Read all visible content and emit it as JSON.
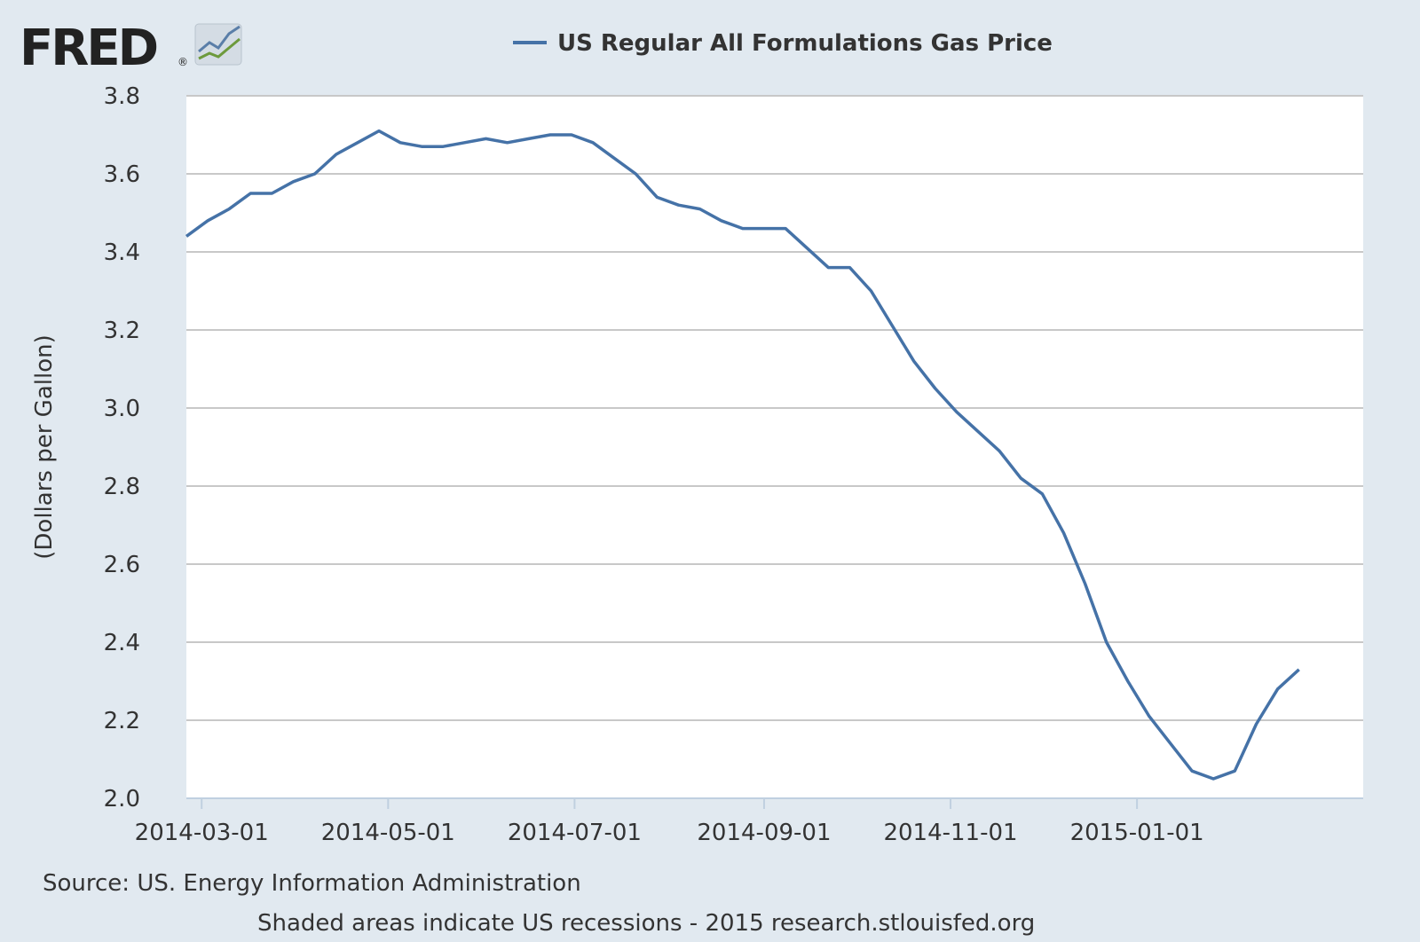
{
  "logo": {
    "text": "FRED",
    "registered": "®"
  },
  "colors": {
    "series": "#4572a7",
    "plot_bg": "#ffffff",
    "page_bg": "#e1e9f0",
    "grid": "#c8c8c8"
  },
  "chart_data": {
    "type": "line",
    "ylabel": "(Dollars per Gallon)",
    "ylim": [
      2.0,
      3.8
    ],
    "yticks": [
      "2.0",
      "2.2",
      "2.4",
      "2.6",
      "2.8",
      "3.0",
      "3.2",
      "3.4",
      "3.6",
      "3.8"
    ],
    "xlim": [
      "2014-02-24",
      "2015-03-16"
    ],
    "xticks": [
      "2014-03-01",
      "2014-05-01",
      "2014-07-01",
      "2014-09-01",
      "2014-11-01",
      "2015-01-01"
    ],
    "grid": true,
    "legend": "top-center",
    "series": [
      {
        "name": "US Regular All Formulations Gas Price",
        "x": [
          "2014-02-24",
          "2014-03-03",
          "2014-03-10",
          "2014-03-17",
          "2014-03-24",
          "2014-03-31",
          "2014-04-07",
          "2014-04-14",
          "2014-04-21",
          "2014-04-28",
          "2014-05-05",
          "2014-05-12",
          "2014-05-19",
          "2014-05-26",
          "2014-06-02",
          "2014-06-09",
          "2014-06-16",
          "2014-06-23",
          "2014-06-30",
          "2014-07-07",
          "2014-07-14",
          "2014-07-21",
          "2014-07-28",
          "2014-08-04",
          "2014-08-11",
          "2014-08-18",
          "2014-08-25",
          "2014-09-01",
          "2014-09-08",
          "2014-09-15",
          "2014-09-22",
          "2014-09-29",
          "2014-10-06",
          "2014-10-13",
          "2014-10-20",
          "2014-10-27",
          "2014-11-03",
          "2014-11-10",
          "2014-11-17",
          "2014-11-24",
          "2014-12-01",
          "2014-12-08",
          "2014-12-15",
          "2014-12-22",
          "2014-12-29",
          "2015-01-05",
          "2015-01-12",
          "2015-01-19",
          "2015-01-26",
          "2015-02-02",
          "2015-02-09",
          "2015-02-16",
          "2015-02-23"
        ],
        "values": [
          3.44,
          3.48,
          3.51,
          3.55,
          3.55,
          3.58,
          3.6,
          3.65,
          3.68,
          3.71,
          3.68,
          3.67,
          3.67,
          3.68,
          3.69,
          3.68,
          3.69,
          3.7,
          3.7,
          3.68,
          3.64,
          3.6,
          3.54,
          3.52,
          3.51,
          3.48,
          3.46,
          3.46,
          3.46,
          3.41,
          3.36,
          3.36,
          3.3,
          3.21,
          3.12,
          3.05,
          2.99,
          2.94,
          2.89,
          2.82,
          2.78,
          2.68,
          2.55,
          2.4,
          2.3,
          2.21,
          2.14,
          2.07,
          2.05,
          2.07,
          2.19,
          2.28,
          2.33
        ]
      }
    ]
  },
  "footer": {
    "source": "Source: US. Energy Information Administration",
    "note": "Shaded areas indicate US recessions - 2015 research.stlouisfed.org"
  }
}
